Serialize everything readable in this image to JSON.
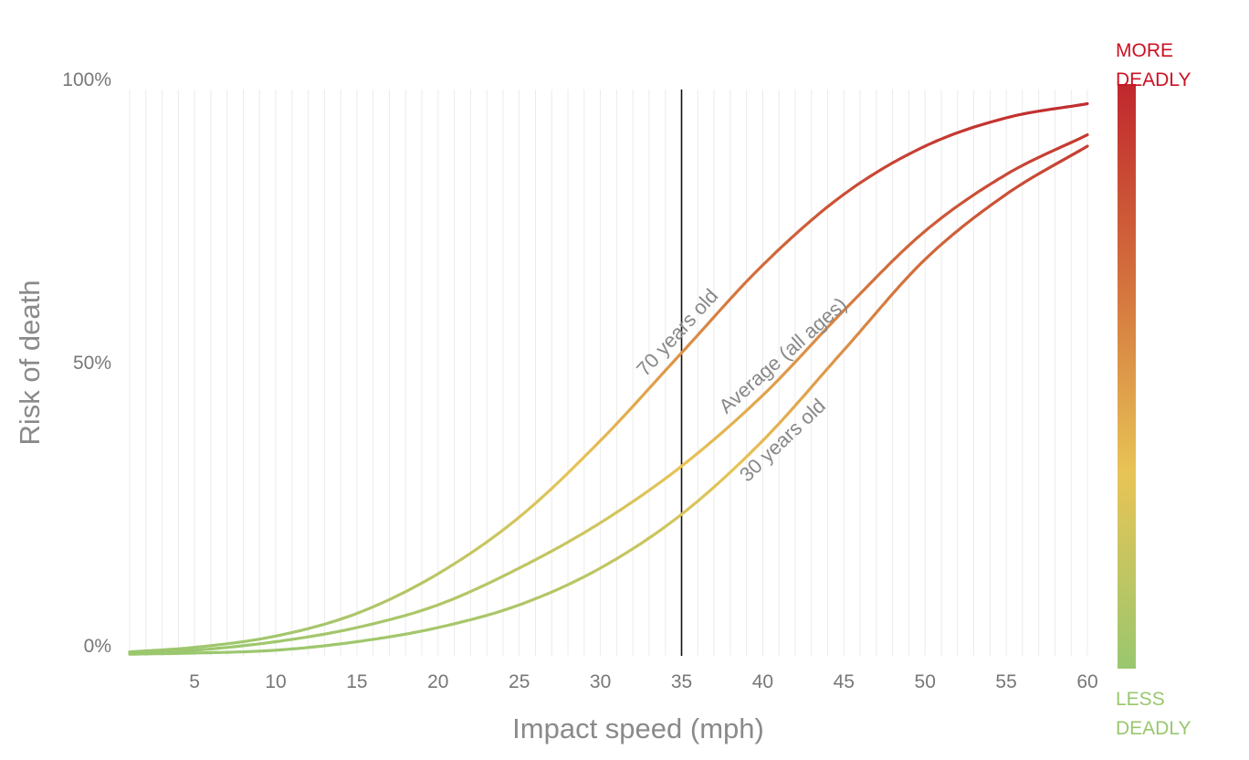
{
  "chart_data": {
    "type": "line",
    "xlabel": "Impact speed (mph)",
    "ylabel": "Risk of death",
    "xlim": [
      1,
      60
    ],
    "ylim": [
      0,
      100
    ],
    "x_ticks": [
      5,
      10,
      15,
      20,
      25,
      30,
      35,
      40,
      45,
      50,
      55,
      60
    ],
    "x_tick_labels": [
      "5",
      "10",
      "15",
      "20",
      "25",
      "30",
      "35",
      "40",
      "45",
      "50",
      "55",
      "60"
    ],
    "y_ticks": [
      0,
      50,
      100
    ],
    "y_tick_labels": [
      "0%",
      "50%",
      "100%"
    ],
    "grid": "vertical lines every 1 mph",
    "reference_line_x": 35,
    "x": [
      1,
      5,
      10,
      15,
      20,
      25,
      30,
      35,
      40,
      45,
      50,
      55,
      60
    ],
    "series": [
      {
        "name": "70 years old",
        "label_anchor_x": 33,
        "values": [
          0.7,
          1.5,
          3.5,
          7.5,
          14.5,
          24.5,
          38,
          53.5,
          69,
          81.5,
          90,
          95,
          97.5
        ]
      },
      {
        "name": "Average (all ages)",
        "label_anchor_x": 38,
        "values": [
          0.5,
          1.0,
          2.5,
          5.0,
          9.0,
          15.5,
          23.5,
          33.5,
          46,
          61,
          75,
          85,
          92
        ]
      },
      {
        "name": "30 years old",
        "label_anchor_x": 38.5,
        "values": [
          0.3,
          0.5,
          1.0,
          2.5,
          5.0,
          9.0,
          15.5,
          25,
          38,
          54,
          70,
          81.5,
          90
        ]
      }
    ],
    "color_scale": {
      "top_label": [
        "MORE",
        "DEADLY"
      ],
      "bottom_label": [
        "LESS",
        "DEADLY"
      ],
      "stops": [
        "#9ac76e",
        "#e8c456",
        "#d3703d",
        "#c0272d"
      ]
    }
  }
}
